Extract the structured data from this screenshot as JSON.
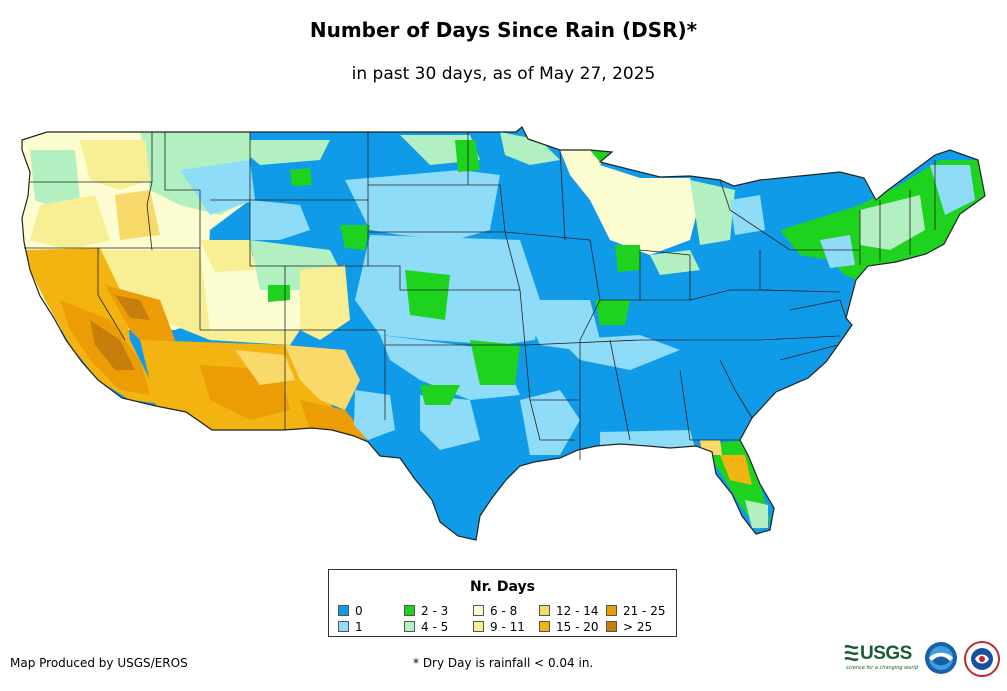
{
  "title": "Number of Days Since Rain (DSR)*",
  "subtitle": "in past 30 days, as of May 27, 2025",
  "legend": {
    "title": "Nr. Days",
    "items": [
      {
        "label": "0",
        "color": "#0f9be8"
      },
      {
        "label": "1",
        "color": "#8fdcf8"
      },
      {
        "label": "2 - 3",
        "color": "#1ed31e"
      },
      {
        "label": "4 - 5",
        "color": "#b2f0c2"
      },
      {
        "label": "6 - 8",
        "color": "#fcfdd0"
      },
      {
        "label": "9 - 11",
        "color": "#f8ee94"
      },
      {
        "label": "12 - 14",
        "color": "#f9d96a"
      },
      {
        "label": "15 - 20",
        "color": "#f3b310"
      },
      {
        "label": "21 - 25",
        "color": "#ec9d06"
      },
      {
        "label": "> 25",
        "color": "#c77f0c"
      }
    ]
  },
  "credit": "Map Produced by USGS/EROS",
  "footnote": "* Dry Day is rainfall < 0.04 in.",
  "logos": {
    "usgs": "USGS",
    "usgs_tagline": "science for a changing world"
  }
}
